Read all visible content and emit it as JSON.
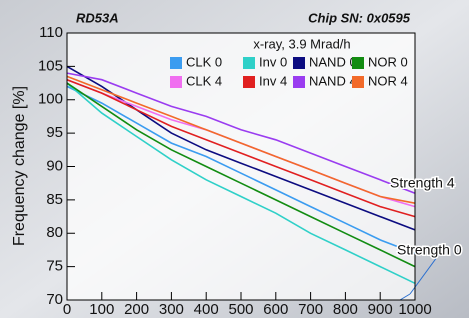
{
  "chart_data": {
    "type": "line",
    "title": "RD53A",
    "subtitle": "Chip SN: 0x0595",
    "legend_title": "x-ray, 3.9 Mrad/h",
    "y_label": "Frequency change [%]",
    "annotations": [
      "Strength 4",
      "Strength 0"
    ],
    "x": [
      0,
      100,
      200,
      300,
      400,
      500,
      600,
      700,
      800,
      900,
      1000
    ],
    "series": [
      {
        "name": "CLK 0",
        "color": "#3b9cf0",
        "values": [
          102,
          99.5,
          96.5,
          93.5,
          91.5,
          89,
          86.5,
          84,
          81.5,
          79,
          77
        ]
      },
      {
        "name": "Inv 0",
        "color": "#2fd0c8",
        "values": [
          102.5,
          98,
          94.5,
          91,
          88,
          85.5,
          83,
          80,
          77.5,
          75,
          72.5
        ]
      },
      {
        "name": "NAND 0",
        "color": "#0c0c80",
        "values": [
          105,
          102,
          98.5,
          95,
          92.5,
          90.5,
          88.5,
          86.5,
          84.5,
          82.5,
          80.5
        ]
      },
      {
        "name": "NOR 0",
        "color": "#128c12",
        "values": [
          102.5,
          99,
          95.5,
          92.5,
          90,
          87.5,
          85,
          82.5,
          80,
          77.5,
          75
        ]
      },
      {
        "name": "CLK 4",
        "color": "#f06ef0",
        "values": [
          103,
          101,
          99,
          97,
          95.5,
          93.5,
          91.5,
          89.5,
          87.5,
          85.5,
          84
        ]
      },
      {
        "name": "Inv 4",
        "color": "#e02020",
        "values": [
          103,
          101,
          98.5,
          96,
          94,
          92,
          90,
          88,
          86,
          84,
          82.5
        ]
      },
      {
        "name": "NAND 4",
        "color": "#9a3cf0",
        "values": [
          104,
          103,
          101,
          99,
          97.5,
          95.5,
          94,
          92,
          90,
          88,
          86
        ]
      },
      {
        "name": "NOR 4",
        "color": "#f26a2a",
        "values": [
          103.5,
          101.5,
          99.5,
          97.5,
          95.5,
          93.5,
          91.5,
          89.5,
          87.5,
          85.5,
          84.5
        ]
      }
    ],
    "xlim": [
      0,
      1000
    ],
    "xticks": [
      0,
      100,
      200,
      300,
      400,
      500,
      600,
      700,
      800,
      900,
      1000
    ],
    "ylim": [
      70,
      110
    ],
    "yticks": [
      70,
      75,
      80,
      85,
      90,
      95,
      100,
      105,
      110
    ],
    "grid": false
  }
}
